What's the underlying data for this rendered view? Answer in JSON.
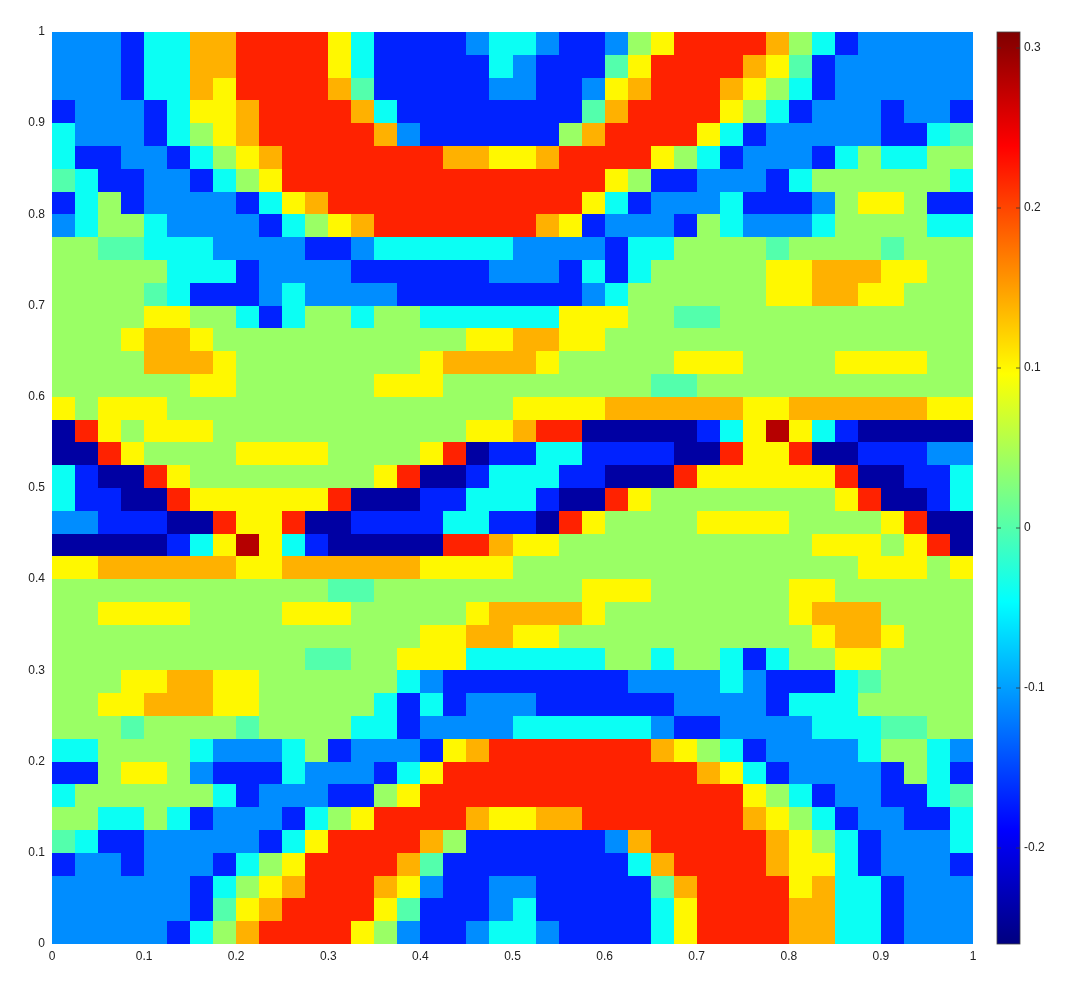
{
  "chart_data": {
    "type": "heatmap",
    "xlim": [
      0,
      1
    ],
    "ylim": [
      0,
      1
    ],
    "xticks": [
      0,
      0.1,
      0.2,
      0.3,
      0.4,
      0.5,
      0.6,
      0.7,
      0.8,
      0.9,
      1
    ],
    "yticks": [
      0,
      0.1,
      0.2,
      0.3,
      0.4,
      0.5,
      0.6,
      0.7,
      0.8,
      0.9,
      1
    ],
    "clim": [
      -0.26,
      0.31
    ],
    "cticks": [
      -0.2,
      -0.1,
      0,
      0.1,
      0.2,
      0.3
    ],
    "cells": [
      [
        -0.11,
        -0.11,
        -0.11,
        -0.17,
        -0.04,
        -0.04,
        0.14,
        0.14,
        0.22,
        0.22,
        0.22,
        0.22,
        0.1,
        -0.04,
        -0.17,
        -0.17,
        -0.17,
        -0.17,
        -0.11,
        -0.04,
        -0.04,
        -0.11,
        -0.17,
        -0.17,
        -0.11,
        0.04,
        0.1,
        0.22,
        0.22,
        0.22,
        0.22,
        0.14,
        0.04,
        -0.04,
        -0.17,
        -0.11,
        -0.11,
        -0.11,
        -0.11,
        -0.11
      ],
      [
        -0.11,
        -0.11,
        -0.11,
        -0.17,
        -0.04,
        -0.04,
        0.14,
        0.14,
        0.22,
        0.22,
        0.22,
        0.22,
        0.1,
        -0.04,
        -0.17,
        -0.17,
        -0.17,
        -0.17,
        -0.17,
        -0.04,
        -0.11,
        -0.17,
        -0.17,
        -0.17,
        0,
        0.1,
        0.22,
        0.22,
        0.22,
        0.22,
        0.14,
        0.1,
        0,
        -0.17,
        -0.11,
        -0.11,
        -0.11,
        -0.11,
        -0.11,
        -0.11
      ],
      [
        -0.11,
        -0.11,
        -0.11,
        -0.17,
        -0.04,
        -0.04,
        0.14,
        0.1,
        0.22,
        0.22,
        0.22,
        0.22,
        0.14,
        0,
        -0.17,
        -0.17,
        -0.17,
        -0.17,
        -0.17,
        -0.11,
        -0.11,
        -0.17,
        -0.17,
        -0.11,
        0.1,
        0.14,
        0.22,
        0.22,
        0.22,
        0.14,
        0.1,
        0.04,
        -0.04,
        -0.17,
        -0.11,
        -0.11,
        -0.11,
        -0.11,
        -0.11,
        -0.11
      ],
      [
        -0.17,
        -0.11,
        -0.11,
        -0.11,
        -0.17,
        -0.04,
        0.1,
        0.1,
        0.14,
        0.22,
        0.22,
        0.22,
        0.22,
        0.14,
        -0.04,
        -0.17,
        -0.17,
        -0.17,
        -0.17,
        -0.17,
        -0.17,
        -0.17,
        -0.17,
        0,
        0.14,
        0.22,
        0.22,
        0.22,
        0.22,
        0.1,
        0.04,
        -0.04,
        -0.17,
        -0.11,
        -0.11,
        -0.11,
        -0.17,
        -0.11,
        -0.11,
        -0.17
      ],
      [
        -0.04,
        -0.11,
        -0.11,
        -0.11,
        -0.17,
        -0.04,
        0.04,
        0.1,
        0.14,
        0.22,
        0.22,
        0.22,
        0.22,
        0.22,
        0.14,
        -0.11,
        -0.17,
        -0.17,
        -0.17,
        -0.17,
        -0.17,
        -0.17,
        0.04,
        0.14,
        0.22,
        0.22,
        0.22,
        0.22,
        0.1,
        -0.04,
        -0.17,
        -0.11,
        -0.11,
        -0.11,
        -0.11,
        -0.11,
        -0.17,
        -0.17,
        -0.04,
        0
      ],
      [
        -0.04,
        -0.17,
        -0.17,
        -0.11,
        -0.11,
        -0.17,
        -0.04,
        0.04,
        0.1,
        0.14,
        0.22,
        0.22,
        0.22,
        0.22,
        0.22,
        0.22,
        0.22,
        0.14,
        0.14,
        0.1,
        0.1,
        0.14,
        0.22,
        0.22,
        0.22,
        0.22,
        0.1,
        0.04,
        -0.04,
        -0.17,
        -0.11,
        -0.11,
        -0.11,
        -0.17,
        -0.04,
        0.04,
        -0.04,
        -0.04,
        0.04,
        0.04
      ],
      [
        0,
        -0.04,
        -0.17,
        -0.17,
        -0.11,
        -0.11,
        -0.17,
        -0.04,
        0.04,
        0.1,
        0.22,
        0.22,
        0.22,
        0.22,
        0.22,
        0.22,
        0.22,
        0.22,
        0.22,
        0.22,
        0.22,
        0.22,
        0.22,
        0.22,
        0.1,
        0.04,
        -0.17,
        -0.17,
        -0.11,
        -0.11,
        -0.11,
        -0.17,
        -0.04,
        0.04,
        0.04,
        0.04,
        0.04,
        0.04,
        0.04,
        -0.04
      ],
      [
        -0.17,
        -0.04,
        0.04,
        -0.17,
        -0.11,
        -0.11,
        -0.11,
        -0.11,
        -0.17,
        -0.04,
        0.1,
        0.14,
        0.22,
        0.22,
        0.22,
        0.22,
        0.22,
        0.22,
        0.22,
        0.22,
        0.22,
        0.22,
        0.22,
        0.1,
        -0.04,
        -0.17,
        -0.11,
        -0.11,
        -0.11,
        -0.04,
        -0.17,
        -0.17,
        -0.17,
        -0.11,
        0.04,
        0.1,
        0.1,
        0.04,
        -0.17,
        -0.17
      ],
      [
        -0.11,
        -0.04,
        0.04,
        0.04,
        -0.04,
        -0.11,
        -0.11,
        -0.11,
        -0.11,
        -0.17,
        -0.04,
        0.04,
        0.1,
        0.14,
        0.22,
        0.22,
        0.22,
        0.22,
        0.22,
        0.22,
        0.22,
        0.14,
        0.1,
        -0.17,
        -0.11,
        -0.11,
        -0.11,
        -0.17,
        0.04,
        -0.04,
        -0.11,
        -0.11,
        -0.11,
        -0.04,
        0.04,
        0.04,
        0.04,
        0.04,
        -0.04,
        -0.04
      ],
      [
        0.04,
        0.04,
        0,
        0,
        -0.04,
        -0.04,
        -0.04,
        -0.11,
        -0.11,
        -0.11,
        -0.11,
        -0.17,
        -0.17,
        -0.11,
        -0.04,
        -0.04,
        -0.04,
        -0.04,
        -0.04,
        -0.04,
        -0.11,
        -0.11,
        -0.11,
        -0.11,
        -0.17,
        -0.04,
        -0.04,
        0.04,
        0.04,
        0.04,
        0.04,
        0,
        0.04,
        0.04,
        0.04,
        0.04,
        0,
        0.04,
        0.04,
        0.04
      ],
      [
        0.04,
        0.04,
        0.04,
        0.04,
        0.04,
        -0.04,
        -0.04,
        -0.04,
        -0.17,
        -0.11,
        -0.11,
        -0.11,
        -0.11,
        -0.17,
        -0.17,
        -0.17,
        -0.17,
        -0.17,
        -0.17,
        -0.11,
        -0.11,
        -0.11,
        -0.17,
        -0.04,
        -0.17,
        -0.04,
        0.04,
        0.04,
        0.04,
        0.04,
        0.04,
        0.1,
        0.1,
        0.14,
        0.14,
        0.14,
        0.1,
        0.1,
        0.04,
        0.04
      ],
      [
        0.04,
        0.04,
        0.04,
        0.04,
        0,
        -0.04,
        -0.17,
        -0.17,
        -0.17,
        -0.11,
        -0.04,
        -0.11,
        -0.11,
        -0.11,
        -0.11,
        -0.17,
        -0.17,
        -0.17,
        -0.17,
        -0.17,
        -0.17,
        -0.17,
        -0.17,
        -0.11,
        -0.04,
        0.04,
        0.04,
        0.04,
        0.04,
        0.04,
        0.04,
        0.1,
        0.1,
        0.14,
        0.14,
        0.1,
        0.1,
        0.04,
        0.04,
        0.04
      ],
      [
        0.04,
        0.04,
        0.04,
        0.04,
        0.1,
        0.1,
        0.04,
        0.04,
        -0.04,
        -0.17,
        -0.04,
        0.04,
        0.04,
        -0.04,
        0.04,
        0.04,
        -0.04,
        -0.04,
        -0.04,
        -0.04,
        -0.04,
        -0.04,
        0.1,
        0.1,
        0.1,
        0.04,
        0.04,
        0,
        0,
        0.04,
        0.04,
        0.04,
        0.04,
        0.04,
        0.04,
        0.04,
        0.04,
        0.04,
        0.04,
        0.04
      ],
      [
        0.04,
        0.04,
        0.04,
        0.1,
        0.14,
        0.14,
        0.1,
        0.04,
        0.04,
        0.04,
        0.04,
        0.04,
        0.04,
        0.04,
        0.04,
        0.04,
        0.04,
        0.04,
        0.1,
        0.1,
        0.14,
        0.14,
        0.1,
        0.1,
        0.04,
        0.04,
        0.04,
        0.04,
        0.04,
        0.04,
        0.04,
        0.04,
        0.04,
        0.04,
        0.04,
        0.04,
        0.04,
        0.04,
        0.04,
        0.04
      ],
      [
        0.04,
        0.04,
        0.04,
        0.04,
        0.14,
        0.14,
        0.14,
        0.1,
        0.04,
        0.04,
        0.04,
        0.04,
        0.04,
        0.04,
        0.04,
        0.04,
        0.1,
        0.14,
        0.14,
        0.14,
        0.14,
        0.1,
        0.04,
        0.04,
        0.04,
        0.04,
        0.04,
        0.1,
        0.1,
        0.1,
        0.04,
        0.04,
        0.04,
        0.04,
        0.1,
        0.1,
        0.1,
        0.1,
        0.04,
        0.04
      ],
      [
        0.04,
        0.04,
        0.04,
        0.04,
        0.04,
        0.04,
        0.1,
        0.1,
        0.04,
        0.04,
        0.04,
        0.04,
        0.04,
        0.04,
        0.1,
        0.1,
        0.1,
        0.04,
        0.04,
        0.04,
        0.04,
        0.04,
        0.04,
        0.04,
        0.04,
        0.04,
        0,
        0,
        0.04,
        0.04,
        0.04,
        0.04,
        0.04,
        0.04,
        0.04,
        0.04,
        0.04,
        0.04,
        0.04,
        0.04
      ],
      [
        0.1,
        0.04,
        0.1,
        0.1,
        0.1,
        0.04,
        0.04,
        0.04,
        0.04,
        0.04,
        0.04,
        0.04,
        0.04,
        0.04,
        0.04,
        0.04,
        0.04,
        0.04,
        0.04,
        0.04,
        0.1,
        0.1,
        0.1,
        0.1,
        0.14,
        0.14,
        0.14,
        0.14,
        0.14,
        0.14,
        0.1,
        0.1,
        0.14,
        0.14,
        0.14,
        0.14,
        0.14,
        0.14,
        0.1,
        0.1
      ],
      [
        -0.24,
        0.22,
        0.1,
        0.04,
        0.1,
        0.1,
        0.1,
        0.04,
        0.04,
        0.04,
        0.04,
        0.04,
        0.04,
        0.04,
        0.04,
        0.04,
        0.04,
        0.04,
        0.1,
        0.1,
        0.14,
        0.22,
        0.22,
        -0.24,
        -0.24,
        -0.24,
        -0.24,
        -0.24,
        -0.17,
        -0.04,
        0.1,
        0.28,
        0.1,
        -0.04,
        -0.17,
        -0.24,
        -0.24,
        -0.24,
        -0.24,
        -0.24
      ],
      [
        -0.24,
        -0.24,
        0.22,
        0.1,
        0.04,
        0.04,
        0.04,
        0.04,
        0.1,
        0.1,
        0.1,
        0.1,
        0.04,
        0.04,
        0.04,
        0.04,
        0.1,
        0.22,
        -0.24,
        -0.17,
        -0.17,
        -0.04,
        -0.04,
        -0.17,
        -0.17,
        -0.17,
        -0.17,
        -0.24,
        -0.24,
        0.22,
        0.1,
        0.1,
        0.22,
        -0.24,
        -0.24,
        -0.17,
        -0.17,
        -0.17,
        -0.11,
        -0.11
      ],
      [
        -0.04,
        -0.17,
        -0.24,
        -0.24,
        0.22,
        0.1,
        0.04,
        0.04,
        0.04,
        0.04,
        0.04,
        0.04,
        0.04,
        0.04,
        0.1,
        0.22,
        -0.24,
        -0.24,
        -0.17,
        -0.04,
        -0.04,
        -0.04,
        -0.17,
        -0.17,
        -0.24,
        -0.24,
        -0.24,
        0.22,
        0.1,
        0.1,
        0.1,
        0.1,
        0.1,
        0.1,
        0.22,
        -0.24,
        -0.24,
        -0.17,
        -0.17,
        -0.04
      ],
      [
        -0.04,
        -0.17,
        -0.17,
        -0.24,
        -0.24,
        0.22,
        0.1,
        0.1,
        0.1,
        0.1,
        0.1,
        0.1,
        0.22,
        -0.24,
        -0.24,
        -0.24,
        -0.17,
        -0.17,
        -0.04,
        -0.04,
        -0.04,
        -0.17,
        -0.24,
        -0.24,
        0.22,
        0.1,
        0.04,
        0.04,
        0.04,
        0.04,
        0.04,
        0.04,
        0.04,
        0.04,
        0.1,
        0.22,
        -0.24,
        -0.24,
        -0.17,
        -0.04
      ],
      [
        -0.11,
        -0.11,
        -0.17,
        -0.17,
        -0.17,
        -0.24,
        -0.24,
        0.22,
        0.1,
        0.1,
        0.22,
        -0.24,
        -0.24,
        -0.17,
        -0.17,
        -0.17,
        -0.17,
        -0.04,
        -0.04,
        -0.17,
        -0.17,
        -0.24,
        0.22,
        0.1,
        0.04,
        0.04,
        0.04,
        0.04,
        0.1,
        0.1,
        0.1,
        0.1,
        0.04,
        0.04,
        0.04,
        0.04,
        0.1,
        0.22,
        -0.24,
        -0.24
      ],
      [
        -0.24,
        -0.24,
        -0.24,
        -0.24,
        -0.24,
        -0.17,
        -0.04,
        0.1,
        0.28,
        0.1,
        -0.04,
        -0.17,
        -0.24,
        -0.24,
        -0.24,
        -0.24,
        -0.24,
        0.22,
        0.22,
        0.14,
        0.1,
        0.1,
        0.04,
        0.04,
        0.04,
        0.04,
        0.04,
        0.04,
        0.04,
        0.04,
        0.04,
        0.04,
        0.04,
        0.1,
        0.1,
        0.1,
        0.04,
        0.1,
        0.22,
        -0.24
      ],
      [
        0.1,
        0.1,
        0.14,
        0.14,
        0.14,
        0.14,
        0.14,
        0.14,
        0.1,
        0.1,
        0.14,
        0.14,
        0.14,
        0.14,
        0.14,
        0.14,
        0.1,
        0.1,
        0.1,
        0.1,
        0.04,
        0.04,
        0.04,
        0.04,
        0.04,
        0.04,
        0.04,
        0.04,
        0.04,
        0.04,
        0.04,
        0.04,
        0.04,
        0.04,
        0.04,
        0.1,
        0.1,
        0.1,
        0.04,
        0.1
      ],
      [
        0.04,
        0.04,
        0.04,
        0.04,
        0.04,
        0.04,
        0.04,
        0.04,
        0.04,
        0.04,
        0.04,
        0.04,
        0,
        0,
        0.04,
        0.04,
        0.04,
        0.04,
        0.04,
        0.04,
        0.04,
        0.04,
        0.04,
        0.1,
        0.1,
        0.1,
        0.04,
        0.04,
        0.04,
        0.04,
        0.04,
        0.04,
        0.1,
        0.1,
        0.04,
        0.04,
        0.04,
        0.04,
        0.04,
        0.04
      ],
      [
        0.04,
        0.04,
        0.1,
        0.1,
        0.1,
        0.1,
        0.04,
        0.04,
        0.04,
        0.04,
        0.1,
        0.1,
        0.1,
        0.04,
        0.04,
        0.04,
        0.04,
        0.04,
        0.1,
        0.14,
        0.14,
        0.14,
        0.14,
        0.1,
        0.04,
        0.04,
        0.04,
        0.04,
        0.04,
        0.04,
        0.04,
        0.04,
        0.1,
        0.14,
        0.14,
        0.14,
        0.04,
        0.04,
        0.04,
        0.04
      ],
      [
        0.04,
        0.04,
        0.04,
        0.04,
        0.04,
        0.04,
        0.04,
        0.04,
        0.04,
        0.04,
        0.04,
        0.04,
        0.04,
        0.04,
        0.04,
        0.04,
        0.1,
        0.1,
        0.14,
        0.14,
        0.1,
        0.1,
        0.04,
        0.04,
        0.04,
        0.04,
        0.04,
        0.04,
        0.04,
        0.04,
        0.04,
        0.04,
        0.04,
        0.1,
        0.14,
        0.14,
        0.1,
        0.04,
        0.04,
        0.04
      ],
      [
        0.04,
        0.04,
        0.04,
        0.04,
        0.04,
        0.04,
        0.04,
        0.04,
        0.04,
        0.04,
        0.04,
        0,
        0,
        0.04,
        0.04,
        0.1,
        0.1,
        0.1,
        -0.04,
        -0.04,
        -0.04,
        -0.04,
        -0.04,
        -0.04,
        0.04,
        0.04,
        -0.04,
        0.04,
        0.04,
        -0.04,
        -0.17,
        -0.04,
        0.04,
        0.04,
        0.1,
        0.1,
        0.04,
        0.04,
        0.04,
        0.04
      ],
      [
        0.04,
        0.04,
        0.04,
        0.1,
        0.1,
        0.14,
        0.14,
        0.1,
        0.1,
        0.04,
        0.04,
        0.04,
        0.04,
        0.04,
        0.04,
        -0.04,
        -0.11,
        -0.17,
        -0.17,
        -0.17,
        -0.17,
        -0.17,
        -0.17,
        -0.17,
        -0.17,
        -0.11,
        -0.11,
        -0.11,
        -0.11,
        -0.04,
        -0.11,
        -0.17,
        -0.17,
        -0.17,
        -0.04,
        0,
        0.04,
        0.04,
        0.04,
        0.04
      ],
      [
        0.04,
        0.04,
        0.1,
        0.1,
        0.14,
        0.14,
        0.14,
        0.1,
        0.1,
        0.04,
        0.04,
        0.04,
        0.04,
        0.04,
        -0.04,
        -0.17,
        -0.04,
        -0.17,
        -0.11,
        -0.11,
        -0.11,
        -0.17,
        -0.17,
        -0.17,
        -0.17,
        -0.17,
        -0.17,
        -0.11,
        -0.11,
        -0.11,
        -0.11,
        -0.17,
        -0.04,
        -0.04,
        -0.04,
        0.04,
        0.04,
        0.04,
        0.04,
        0.04
      ],
      [
        0.04,
        0.04,
        0.04,
        0,
        0.04,
        0.04,
        0.04,
        0.04,
        0,
        0.04,
        0.04,
        0.04,
        0.04,
        -0.04,
        -0.04,
        -0.17,
        -0.11,
        -0.11,
        -0.11,
        -0.11,
        -0.04,
        -0.04,
        -0.04,
        -0.04,
        -0.04,
        -0.04,
        -0.11,
        -0.17,
        -0.17,
        -0.11,
        -0.11,
        -0.11,
        -0.11,
        -0.04,
        -0.04,
        -0.04,
        0,
        0,
        0.04,
        0.04
      ],
      [
        -0.04,
        -0.04,
        0.04,
        0.04,
        0.04,
        0.04,
        -0.04,
        -0.11,
        -0.11,
        -0.11,
        -0.04,
        0.04,
        -0.17,
        -0.11,
        -0.11,
        -0.11,
        -0.17,
        0.1,
        0.14,
        0.22,
        0.22,
        0.22,
        0.22,
        0.22,
        0.22,
        0.22,
        0.14,
        0.1,
        0.04,
        -0.04,
        -0.17,
        -0.11,
        -0.11,
        -0.11,
        -0.11,
        -0.04,
        0.04,
        0.04,
        -0.04,
        -0.11
      ],
      [
        -0.17,
        -0.17,
        0.04,
        0.1,
        0.1,
        0.04,
        -0.11,
        -0.17,
        -0.17,
        -0.17,
        -0.04,
        -0.11,
        -0.11,
        -0.11,
        -0.17,
        -0.04,
        0.1,
        0.22,
        0.22,
        0.22,
        0.22,
        0.22,
        0.22,
        0.22,
        0.22,
        0.22,
        0.22,
        0.22,
        0.14,
        0.1,
        -0.04,
        -0.17,
        -0.11,
        -0.11,
        -0.11,
        -0.11,
        -0.17,
        0.04,
        -0.04,
        -0.17
      ],
      [
        -0.04,
        0.04,
        0.04,
        0.04,
        0.04,
        0.04,
        0.04,
        -0.04,
        -0.17,
        -0.11,
        -0.11,
        -0.11,
        -0.17,
        -0.17,
        0.04,
        0.1,
        0.22,
        0.22,
        0.22,
        0.22,
        0.22,
        0.22,
        0.22,
        0.22,
        0.22,
        0.22,
        0.22,
        0.22,
        0.22,
        0.22,
        0.1,
        0.04,
        -0.04,
        -0.17,
        -0.11,
        -0.11,
        -0.17,
        -0.17,
        -0.04,
        0
      ],
      [
        0.04,
        0.04,
        -0.04,
        -0.04,
        0.04,
        -0.04,
        -0.17,
        -0.11,
        -0.11,
        -0.11,
        -0.17,
        -0.04,
        0.04,
        0.1,
        0.22,
        0.22,
        0.22,
        0.22,
        0.14,
        0.1,
        0.1,
        0.14,
        0.14,
        0.22,
        0.22,
        0.22,
        0.22,
        0.22,
        0.22,
        0.22,
        0.14,
        0.1,
        0.04,
        -0.04,
        -0.17,
        -0.11,
        -0.11,
        -0.17,
        -0.17,
        -0.04
      ],
      [
        0,
        -0.04,
        -0.17,
        -0.17,
        -0.11,
        -0.11,
        -0.11,
        -0.11,
        -0.11,
        -0.17,
        -0.04,
        0.1,
        0.22,
        0.22,
        0.22,
        0.22,
        0.14,
        0.04,
        -0.17,
        -0.17,
        -0.17,
        -0.17,
        -0.17,
        -0.17,
        -0.11,
        0.14,
        0.22,
        0.22,
        0.22,
        0.22,
        0.22,
        0.14,
        0.1,
        0.04,
        -0.04,
        -0.17,
        -0.11,
        -0.11,
        -0.11,
        -0.04
      ],
      [
        -0.17,
        -0.11,
        -0.11,
        -0.17,
        -0.11,
        -0.11,
        -0.11,
        -0.17,
        -0.04,
        0.04,
        0.1,
        0.22,
        0.22,
        0.22,
        0.22,
        0.14,
        0,
        -0.17,
        -0.17,
        -0.17,
        -0.17,
        -0.17,
        -0.17,
        -0.17,
        -0.17,
        -0.04,
        0.14,
        0.22,
        0.22,
        0.22,
        0.22,
        0.14,
        0.1,
        0.1,
        -0.04,
        -0.17,
        -0.11,
        -0.11,
        -0.11,
        -0.17
      ],
      [
        -0.11,
        -0.11,
        -0.11,
        -0.11,
        -0.11,
        -0.11,
        -0.17,
        -0.04,
        0.04,
        0.1,
        0.14,
        0.22,
        0.22,
        0.22,
        0.14,
        0.1,
        -0.11,
        -0.17,
        -0.17,
        -0.11,
        -0.11,
        -0.17,
        -0.17,
        -0.17,
        -0.17,
        -0.17,
        0,
        0.14,
        0.22,
        0.22,
        0.22,
        0.22,
        0.1,
        0.14,
        -0.04,
        -0.04,
        -0.17,
        -0.11,
        -0.11,
        -0.11
      ],
      [
        -0.11,
        -0.11,
        -0.11,
        -0.11,
        -0.11,
        -0.11,
        -0.17,
        0,
        0.1,
        0.14,
        0.22,
        0.22,
        0.22,
        0.22,
        0.1,
        0,
        -0.17,
        -0.17,
        -0.17,
        -0.11,
        -0.04,
        -0.17,
        -0.17,
        -0.17,
        -0.17,
        -0.17,
        -0.04,
        0.1,
        0.22,
        0.22,
        0.22,
        0.22,
        0.14,
        0.14,
        -0.04,
        -0.04,
        -0.17,
        -0.11,
        -0.11,
        -0.11
      ],
      [
        -0.11,
        -0.11,
        -0.11,
        -0.11,
        -0.11,
        -0.17,
        -0.04,
        0.04,
        0.14,
        0.22,
        0.22,
        0.22,
        0.22,
        0.1,
        0.04,
        -0.11,
        -0.17,
        -0.17,
        -0.11,
        -0.04,
        -0.04,
        -0.11,
        -0.17,
        -0.17,
        -0.17,
        -0.17,
        -0.04,
        0.1,
        0.22,
        0.22,
        0.22,
        0.22,
        0.14,
        0.14,
        -0.04,
        -0.04,
        -0.17,
        -0.11,
        -0.11,
        -0.11
      ]
    ]
  }
}
